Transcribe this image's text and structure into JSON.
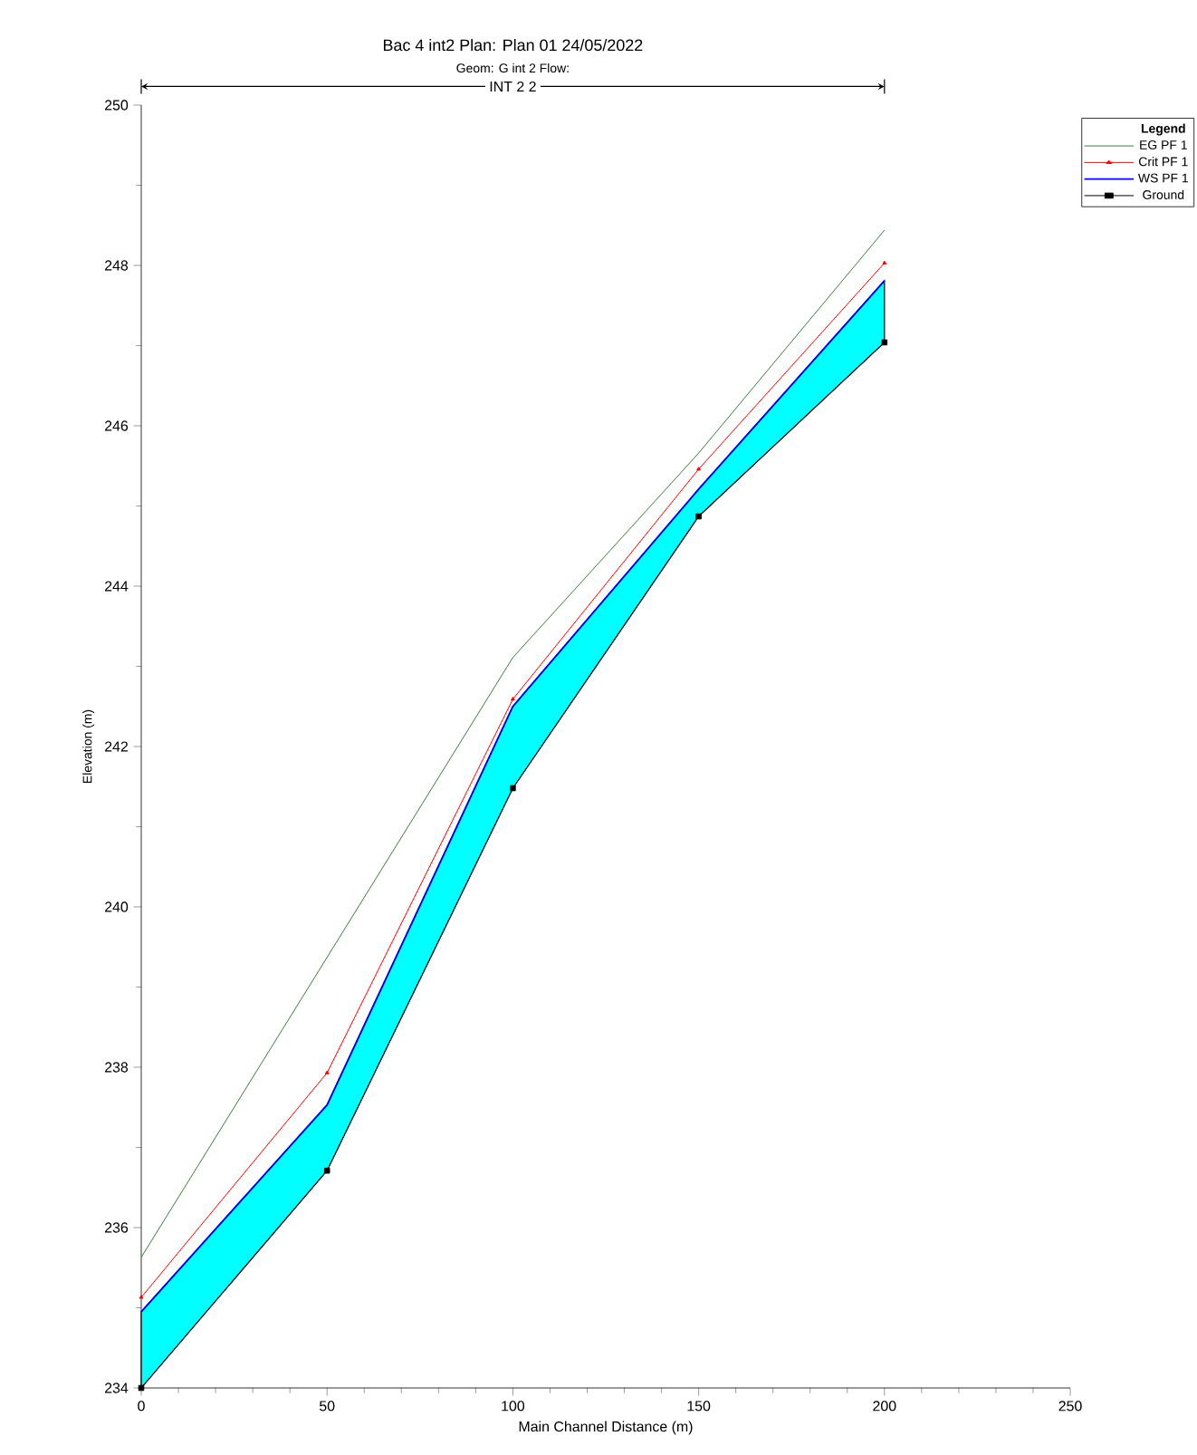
{
  "chart_data": {
    "type": "line",
    "title": "Bac 4 int2      Plan: Plan 01     24/05/2022",
    "subtitle": "Geom: G int 2    Flow:",
    "xlabel": "Main Channel Distance (m)",
    "ylabel": "Elevation (m)",
    "legend_title": "Legend",
    "annotations": [
      "INT 2 2"
    ],
    "x": [
      0,
      50,
      100,
      150,
      200
    ],
    "xlim": [
      0,
      250
    ],
    "ylim": [
      234,
      250
    ],
    "xticks": [
      0,
      50,
      100,
      150,
      200,
      250
    ],
    "yticks": [
      234,
      236,
      238,
      240,
      242,
      244,
      246,
      248,
      250
    ],
    "legend": "top right",
    "series": [
      {
        "name": "EG  PF 1",
        "color": "#3a7d3a",
        "marker": "none",
        "values": [
          235.63,
          239.37,
          243.11,
          245.66,
          248.44
        ]
      },
      {
        "name": "Crit  PF 1",
        "color": "#ff0000",
        "marker": "triangle",
        "values": [
          235.13,
          237.93,
          242.59,
          245.46,
          248.03
        ]
      },
      {
        "name": "WS  PF 1",
        "color": "#0000ff",
        "marker": "none",
        "values": [
          234.95,
          237.53,
          242.5,
          245.21,
          247.81
        ],
        "lower": [
          234,
          236.71,
          241.48,
          244.87,
          247.04
        ],
        "upper": [
          234.95,
          237.53,
          242.5,
          245.21,
          247.81
        ]
      },
      {
        "name": "Ground",
        "color": "#000000",
        "marker": "square",
        "values": [
          234,
          236.71,
          241.48,
          244.87,
          247.04
        ]
      }
    ]
  }
}
